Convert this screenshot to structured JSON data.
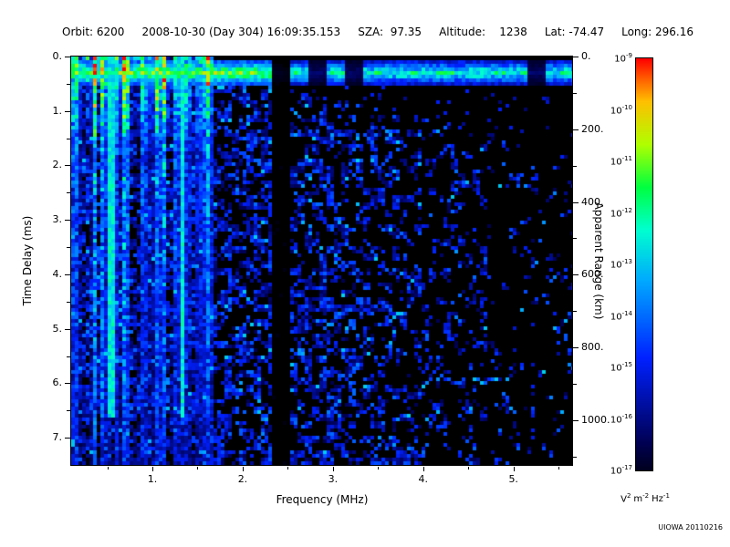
{
  "header": {
    "segments": [
      "Orbit: 6200",
      "2008-10-30 (Day 304) 16:09:35.153",
      "SZA:  97.35",
      "Altitude:    1238",
      "Lat: -74.47",
      "Long: 296.16"
    ]
  },
  "footer": {
    "credit": "UIOWA 20110216"
  },
  "chart_data": {
    "type": "heatmap",
    "title": "",
    "xlabel": "Frequency (MHz)",
    "ylabel": "Time Delay (ms)",
    "y2label": "Apparent Range (km)",
    "x_range": [
      0.1,
      5.65
    ],
    "y_range": [
      0,
      7.5
    ],
    "y2_range": [
      0,
      1123
    ],
    "x_ticks": [
      {
        "v": 1,
        "label": "1."
      },
      {
        "v": 2,
        "label": "2."
      },
      {
        "v": 3,
        "label": "3."
      },
      {
        "v": 4,
        "label": "4."
      },
      {
        "v": 5,
        "label": "5."
      }
    ],
    "y_ticks": [
      {
        "v": 0,
        "label": "0."
      },
      {
        "v": 1,
        "label": "1."
      },
      {
        "v": 2,
        "label": "2."
      },
      {
        "v": 3,
        "label": "3."
      },
      {
        "v": 4,
        "label": "4."
      },
      {
        "v": 5,
        "label": "5."
      },
      {
        "v": 6,
        "label": "6."
      },
      {
        "v": 7,
        "label": "7."
      }
    ],
    "y2_ticks": [
      {
        "v": 0,
        "label": "0."
      },
      {
        "v": 200,
        "label": "200."
      },
      {
        "v": 400,
        "label": "400."
      },
      {
        "v": 600,
        "label": "600."
      },
      {
        "v": 800,
        "label": "800."
      },
      {
        "v": 1000,
        "label": "1000."
      }
    ],
    "colorbar": {
      "scale": "log",
      "tick_exponents": [
        "-9",
        "-10",
        "-11",
        "-12",
        "-13",
        "-14",
        "-15",
        "-16",
        "-17"
      ],
      "unit_parts": [
        {
          "base": "V",
          "exp": "2"
        },
        {
          "base": "m",
          "exp": "-2"
        },
        {
          "base": "Hz",
          "exp": "-1"
        }
      ]
    },
    "colormap": [
      [
        0.0,
        "#000000"
      ],
      [
        0.1,
        "#000050"
      ],
      [
        0.3,
        "#0020ff"
      ],
      [
        0.48,
        "#00a8ff"
      ],
      [
        0.6,
        "#00ffd0"
      ],
      [
        0.7,
        "#00ff40"
      ],
      [
        0.8,
        "#b0ff00"
      ],
      [
        0.9,
        "#ffc000"
      ],
      [
        0.96,
        "#ff5000"
      ],
      [
        1.0,
        "#ff0000"
      ]
    ],
    "features": {
      "background": "#000000",
      "surface_echo_band": {
        "t_center_ms": 0.3,
        "t_halfwidth_ms": 0.24,
        "patchy_above_mhz": 2.45
      },
      "plasma_lines_max_mhz": 1.68,
      "strong_lines_mhz": [
        0.55,
        1.33
      ],
      "gap_band_mhz": [
        2.33,
        2.52
      ],
      "speckle_onset": {
        "f0": 1.65,
        "t0_ms": 0.35,
        "slope_ms_per_mhz": 0.33
      },
      "speckle_density": [
        [
          3.0,
          0.5
        ],
        [
          4.0,
          0.42
        ],
        [
          4.8,
          0.3
        ],
        [
          9.9,
          0.22
        ]
      ]
    }
  }
}
